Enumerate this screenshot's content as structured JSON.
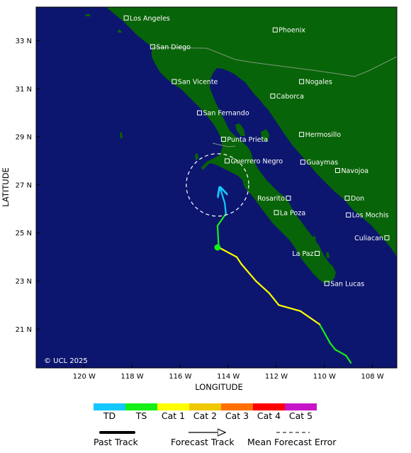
{
  "map": {
    "axes": {
      "xlabel": "LONGITUDE",
      "ylabel": "LATITUDE",
      "x_ticks": [
        {
          "lon": -120,
          "label": "120 W"
        },
        {
          "lon": -118,
          "label": "118 W"
        },
        {
          "lon": -116,
          "label": "116 W"
        },
        {
          "lon": -114,
          "label": "114 W"
        },
        {
          "lon": -112,
          "label": "112 W"
        },
        {
          "lon": -110,
          "label": "110 W"
        },
        {
          "lon": -108,
          "label": "108 W"
        }
      ],
      "y_ticks": [
        {
          "lat": 33,
          "label": "33 N"
        },
        {
          "lat": 31,
          "label": "31 N"
        },
        {
          "lat": 29,
          "label": "29 N"
        },
        {
          "lat": 27,
          "label": "27 N"
        },
        {
          "lat": 25,
          "label": "25 N"
        },
        {
          "lat": 23,
          "label": "23 N"
        },
        {
          "lat": 21,
          "label": "21 N"
        }
      ]
    },
    "colors": {
      "ocean": "#0c166e",
      "land": "#086408",
      "border": "#7a9a7a",
      "grid": "#000000"
    },
    "copyright": "© UCL 2025",
    "cities": [
      {
        "name": "Los Angeles",
        "lon": -118.25,
        "lat": 33.95
      },
      {
        "name": "Phoenix",
        "lon": -112.05,
        "lat": 33.45
      },
      {
        "name": "San Diego",
        "lon": -117.15,
        "lat": 32.75
      },
      {
        "name": "San Vicente",
        "lon": -116.25,
        "lat": 31.3
      },
      {
        "name": "Nogales",
        "lon": -110.95,
        "lat": 31.3
      },
      {
        "name": "Caborca",
        "lon": -112.15,
        "lat": 30.7
      },
      {
        "name": "San Fernando",
        "lon": -115.2,
        "lat": 30.0
      },
      {
        "name": "Hermosillo",
        "lon": -110.95,
        "lat": 29.1
      },
      {
        "name": "Punta Prieta",
        "lon": -114.2,
        "lat": 28.9
      },
      {
        "name": "Guerrero Negro",
        "lon": -114.05,
        "lat": 28.0
      },
      {
        "name": "Guaymas",
        "lon": -110.9,
        "lat": 27.95
      },
      {
        "name": "Navojoa",
        "lon": -109.45,
        "lat": 27.6
      },
      {
        "name": "Rosarito",
        "lon": -111.5,
        "lat": 26.45,
        "label_side": "left"
      },
      {
        "name": "Don",
        "lon": -109.05,
        "lat": 26.45
      },
      {
        "name": "La Poza",
        "lon": -112.0,
        "lat": 25.85
      },
      {
        "name": "Los Mochis",
        "lon": -109.0,
        "lat": 25.75
      },
      {
        "name": "Culiacan",
        "lon": -107.4,
        "lat": 24.8,
        "label_side": "left"
      },
      {
        "name": "La Paz",
        "lon": -110.3,
        "lat": 24.15,
        "label_side": "left"
      },
      {
        "name": "San Lucas",
        "lon": -109.9,
        "lat": 22.9
      }
    ],
    "track_past": {
      "color": "#ffffff"
    },
    "track": [
      {
        "lon": -108.9,
        "lat": 19.6,
        "cat": "TS"
      },
      {
        "lon": -109.1,
        "lat": 19.9,
        "cat": "TS"
      },
      {
        "lon": -109.55,
        "lat": 20.15,
        "cat": "TS"
      },
      {
        "lon": -109.75,
        "lat": 20.4,
        "cat": "TS"
      },
      {
        "lon": -110.2,
        "lat": 21.2,
        "cat": "Cat 1"
      },
      {
        "lon": -111.0,
        "lat": 21.75,
        "cat": "Cat 1"
      },
      {
        "lon": -111.9,
        "lat": 22.0,
        "cat": "Cat 1"
      },
      {
        "lon": -112.3,
        "lat": 22.5,
        "cat": "Cat 1"
      },
      {
        "lon": -112.85,
        "lat": 23.0,
        "cat": "Cat 1"
      },
      {
        "lon": -113.45,
        "lat": 23.7,
        "cat": "Cat 1"
      },
      {
        "lon": -113.65,
        "lat": 24.0,
        "cat": "Cat 1"
      },
      {
        "lon": -114.4,
        "lat": 24.4,
        "cat": "TS"
      },
      {
        "lon": -114.45,
        "lat": 25.3,
        "cat": "TS"
      },
      {
        "lon": -114.1,
        "lat": 25.8,
        "cat": "TD"
      },
      {
        "lon": -114.15,
        "lat": 26.25,
        "cat": "TD"
      },
      {
        "lon": -114.35,
        "lat": 26.9,
        "cat": "TD"
      }
    ],
    "current_position": {
      "lon": -114.45,
      "lat": 24.4
    },
    "error_circle": {
      "lon": -114.45,
      "lat": 27.0,
      "radius_deg": 1.3
    }
  },
  "legend": {
    "categories": [
      {
        "label": "TD",
        "color": "#14c8ff"
      },
      {
        "label": "TS",
        "color": "#14f014"
      },
      {
        "label": "Cat 1",
        "color": "#ffff00"
      },
      {
        "label": "Cat 2",
        "color": "#f0c800"
      },
      {
        "label": "Cat 3",
        "color": "#ff7000"
      },
      {
        "label": "Cat 4",
        "color": "#ff0000"
      },
      {
        "label": "Cat 5",
        "color": "#c814c8"
      }
    ],
    "keys": {
      "past_track": "Past Track",
      "forecast_track": "Forecast Track",
      "mean_error": "Mean Forecast Error"
    }
  }
}
